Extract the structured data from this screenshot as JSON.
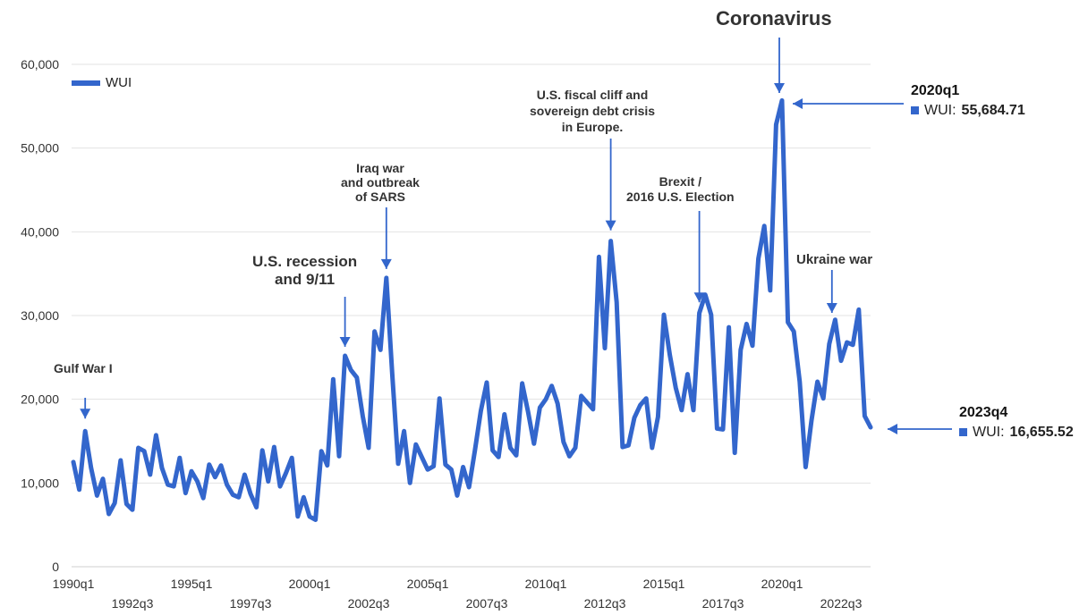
{
  "chart_data": {
    "type": "line",
    "legend": "top-left",
    "series": [
      {
        "name": "WUI",
        "color": "#3366cc",
        "x": [
          "1990q1",
          "1990q2",
          "1990q3",
          "1990q4",
          "1991q1",
          "1991q2",
          "1991q3",
          "1991q4",
          "1992q1",
          "1992q2",
          "1992q3",
          "1992q4",
          "1993q1",
          "1993q2",
          "1993q3",
          "1993q4",
          "1994q1",
          "1994q2",
          "1994q3",
          "1994q4",
          "1995q1",
          "1995q2",
          "1995q3",
          "1995q4",
          "1996q1",
          "1996q2",
          "1996q3",
          "1996q4",
          "1997q1",
          "1997q2",
          "1997q3",
          "1997q4",
          "1998q1",
          "1998q2",
          "1998q3",
          "1998q4",
          "1999q1",
          "1999q2",
          "1999q3",
          "1999q4",
          "2000q1",
          "2000q2",
          "2000q3",
          "2000q4",
          "2001q1",
          "2001q2",
          "2001q3",
          "2001q4",
          "2002q1",
          "2002q2",
          "2002q3",
          "2002q4",
          "2003q1",
          "2003q2",
          "2003q3",
          "2003q4",
          "2004q1",
          "2004q2",
          "2004q3",
          "2004q4",
          "2005q1",
          "2005q2",
          "2005q3",
          "2005q4",
          "2006q1",
          "2006q2",
          "2006q3",
          "2006q4",
          "2007q1",
          "2007q2",
          "2007q3",
          "2007q4",
          "2008q1",
          "2008q2",
          "2008q3",
          "2008q4",
          "2009q1",
          "2009q2",
          "2009q3",
          "2009q4",
          "2010q1",
          "2010q2",
          "2010q3",
          "2010q4",
          "2011q1",
          "2011q2",
          "2011q3",
          "2011q4",
          "2012q1",
          "2012q2",
          "2012q3",
          "2012q4",
          "2013q1",
          "2013q2",
          "2013q3",
          "2013q4",
          "2014q1",
          "2014q2",
          "2014q3",
          "2014q4",
          "2015q1",
          "2015q2",
          "2015q3",
          "2015q4",
          "2016q1",
          "2016q2",
          "2016q3",
          "2016q4",
          "2017q1",
          "2017q2",
          "2017q3",
          "2017q4",
          "2018q1",
          "2018q2",
          "2018q3",
          "2018q4",
          "2019q1",
          "2019q2",
          "2019q3",
          "2019q4",
          "2020q1",
          "2020q2",
          "2020q3",
          "2020q4",
          "2021q1",
          "2021q2",
          "2021q3",
          "2021q4",
          "2022q1",
          "2022q2",
          "2022q3",
          "2022q4",
          "2023q1",
          "2023q2",
          "2023q3",
          "2023q4"
        ],
        "values": [
          12500,
          9200,
          16200,
          11800,
          8500,
          10500,
          6300,
          7600,
          12700,
          7500,
          6800,
          14200,
          13800,
          11000,
          15700,
          11800,
          9800,
          9600,
          13000,
          8800,
          11400,
          10200,
          8200,
          12200,
          10700,
          12100,
          9800,
          8600,
          8300,
          11000,
          8700,
          7100,
          13900,
          10200,
          14300,
          9600,
          11200,
          13000,
          6000,
          8300,
          6000,
          5600,
          13800,
          12100,
          22400,
          13200,
          25200,
          23500,
          22600,
          18000,
          14200,
          28100,
          25900,
          34500,
          23000,
          12300,
          16200,
          10000,
          14600,
          13100,
          11600,
          12000,
          20100,
          12200,
          11600,
          8500,
          11900,
          9500,
          13900,
          18600,
          22000,
          13900,
          13100,
          18200,
          14200,
          13300,
          21900,
          18500,
          14700,
          19000,
          20000,
          21600,
          19500,
          14900,
          13200,
          14200,
          20400,
          19600,
          18800,
          37000,
          26100,
          38900,
          31600,
          14300,
          14500,
          17800,
          19300,
          20100,
          14200,
          17900,
          30100,
          25300,
          21400,
          18700,
          23000,
          18700,
          30300,
          32500,
          30100,
          16500,
          16400,
          28600,
          13600,
          25900,
          29000,
          26400,
          36800,
          40700,
          33000,
          52800,
          55684.71,
          29200,
          28100,
          22100,
          11900,
          17500,
          22100,
          20100,
          26600,
          29500,
          24600,
          26800,
          26500,
          30700,
          18000,
          16655.52
        ]
      }
    ],
    "x_tick_labels": [
      "1990q1",
      "1992q3",
      "1995q1",
      "1997q3",
      "2000q1",
      "2002q3",
      "2005q1",
      "2007q3",
      "2010q1",
      "2012q3",
      "2015q1",
      "2017q3",
      "2020q1",
      "2022q3"
    ],
    "y_ticks": [
      0,
      10000,
      20000,
      30000,
      40000,
      50000,
      60000
    ],
    "y_tick_labels": [
      "0",
      "10,000",
      "20,000",
      "30,000",
      "40,000",
      "50,000",
      "60,000"
    ],
    "ylim": [
      0,
      60000
    ],
    "grid": true,
    "title": "",
    "xlabel": "",
    "ylabel": "",
    "annotations": [
      {
        "text": [
          "Gulf War I"
        ],
        "target": "1990q3",
        "direction": "down",
        "size": "small"
      },
      {
        "text": [
          "U.S. recession",
          "and 9/11"
        ],
        "target": "2001q3",
        "direction": "down",
        "size": "large"
      },
      {
        "text": [
          "Iraq war",
          "and outbreak",
          "of SARS"
        ],
        "target": "2003q2",
        "direction": "down",
        "size": "small"
      },
      {
        "text": [
          "U.S. fiscal cliff and",
          "sovereign debt crisis",
          "in Europe."
        ],
        "target": "2012q4",
        "direction": "down",
        "size": "small"
      },
      {
        "text": [
          "Brexit /",
          "2016 U.S. Election"
        ],
        "target": "2016q3",
        "direction": "down",
        "size": "small"
      },
      {
        "text": [
          "Coronavirus"
        ],
        "target": "2020q1",
        "direction": "down",
        "size": "xlarge"
      },
      {
        "text": [
          "Ukraine war"
        ],
        "target": "2022q1",
        "direction": "down",
        "size": "small"
      }
    ],
    "tooltips": [
      {
        "period": "2020q1",
        "series": "WUI",
        "label": "WUI:",
        "value": "55,684.71"
      },
      {
        "period": "2023q4",
        "series": "WUI",
        "label": "WUI:",
        "value": "16,655.52"
      }
    ]
  }
}
